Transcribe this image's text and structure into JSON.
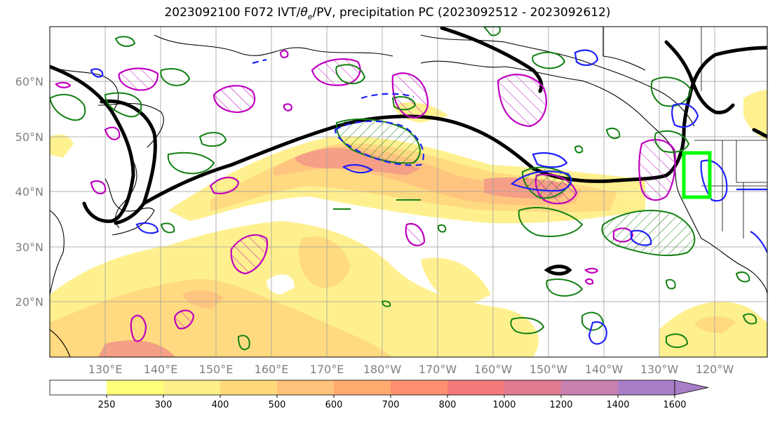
{
  "title": {
    "prefix": "2023092100 F072 IVT/",
    "theta": "θ",
    "sub": "e",
    "suffix": "/PV, precipitation PC (2023092512 - 2023092612)"
  },
  "map": {
    "lat_labels": [
      "60°N",
      "50°N",
      "40°N",
      "30°N",
      "20°N"
    ],
    "lon_labels": [
      "130°E",
      "140°E",
      "150°E",
      "160°E",
      "170°E",
      "180°W",
      "170°W",
      "160°W",
      "150°W",
      "140°W",
      "130°W",
      "120°W"
    ],
    "colors": {
      "pv_contour": "#000000",
      "theta_e_contour": "#1f1fff",
      "precip_contour": "#138013",
      "ivt_anomaly_contour": "#c000c0",
      "target_box": "#00ff00",
      "gridline": "#a0a0a0"
    }
  },
  "colorbar": {
    "levels": [
      "250",
      "300",
      "400",
      "500",
      "600",
      "700",
      "800",
      "1000",
      "1200",
      "1400",
      "1600"
    ],
    "colors": [
      "#ffffff",
      "#ffff7a",
      "#ffef8a",
      "#ffd97a",
      "#ffc27a",
      "#ffab70",
      "#ff8f70",
      "#f27a7a",
      "#e07a90",
      "#c880b0",
      "#a87ec8"
    ],
    "extend": "max"
  }
}
